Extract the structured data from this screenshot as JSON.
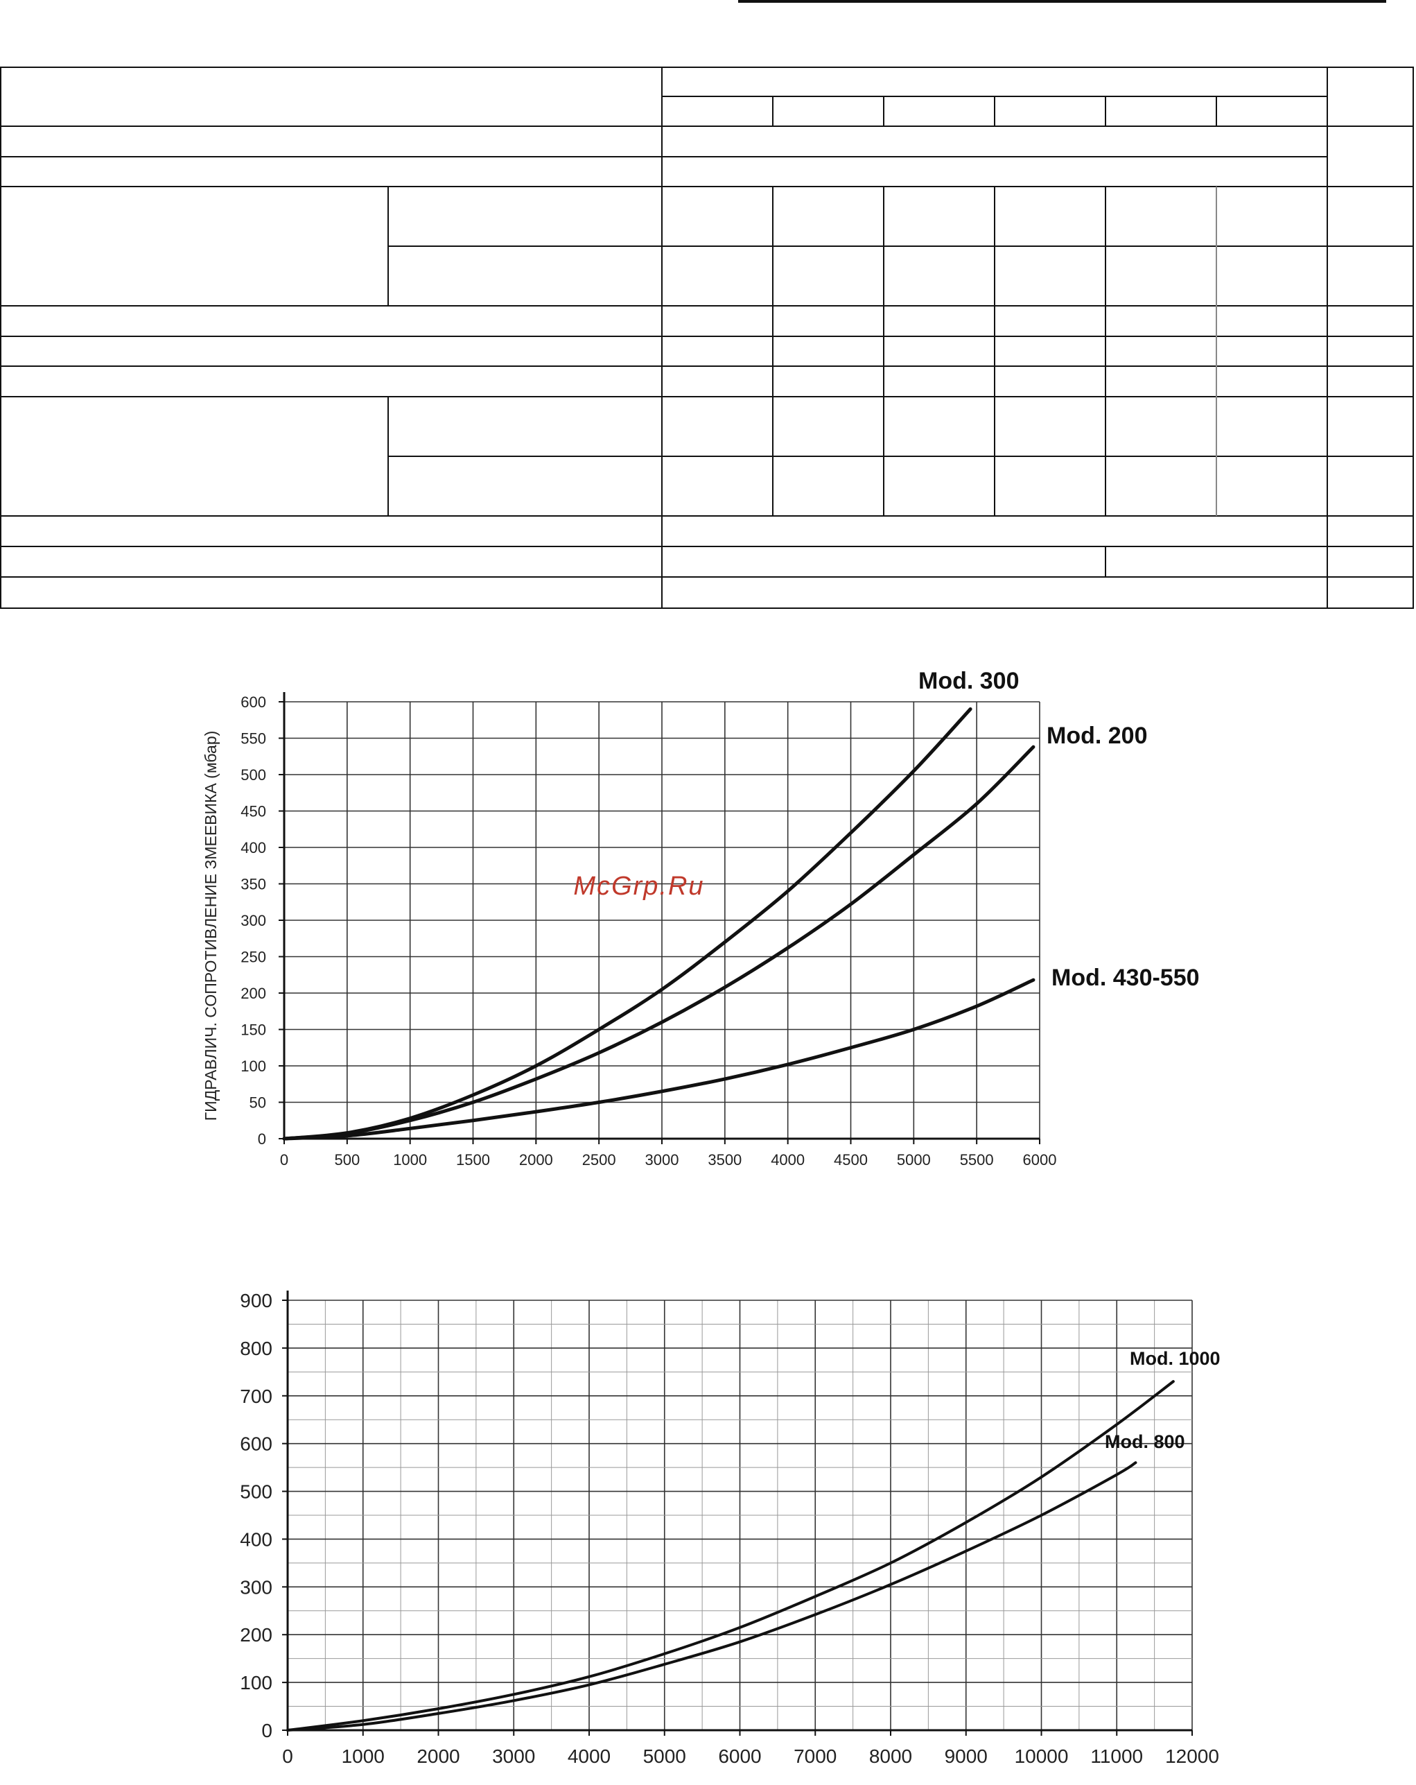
{
  "watermark": "McGrp.Ru",
  "chart_data": [
    {
      "type": "line",
      "title": "",
      "xlabel": "",
      "ylabel": "ГИДРАВЛИЧ. СОПРОТИВЛЕНИЕ ЗМЕЕВИКА (мбар)",
      "xlim": [
        0,
        6000
      ],
      "ylim": [
        0,
        600
      ],
      "x_ticks": [
        "0",
        "500",
        "1000",
        "1500",
        "2000",
        "2500",
        "3000",
        "3500",
        "4000",
        "4500",
        "5000",
        "5500",
        "6000"
      ],
      "y_ticks": [
        "0",
        "50",
        "100",
        "150",
        "200",
        "250",
        "300",
        "350",
        "400",
        "450",
        "500",
        "550",
        "600"
      ],
      "grid": true,
      "series": [
        {
          "name": "Mod. 300",
          "x": [
            0,
            500,
            1000,
            1500,
            2000,
            2500,
            3000,
            3500,
            4000,
            4500,
            5000,
            5450
          ],
          "y": [
            0,
            8,
            28,
            60,
            100,
            150,
            205,
            270,
            340,
            420,
            505,
            590
          ]
        },
        {
          "name": "Mod. 200",
          "x": [
            0,
            500,
            1000,
            1500,
            2000,
            2500,
            3000,
            3500,
            4000,
            4500,
            5000,
            5500,
            5950
          ],
          "y": [
            0,
            7,
            25,
            50,
            82,
            118,
            160,
            208,
            262,
            322,
            390,
            460,
            538
          ]
        },
        {
          "name": "Mod. 430-550",
          "x": [
            0,
            500,
            1000,
            1500,
            2000,
            2500,
            3000,
            3500,
            4000,
            4500,
            5000,
            5500,
            5950
          ],
          "y": [
            0,
            4,
            14,
            25,
            37,
            50,
            65,
            82,
            102,
            125,
            150,
            182,
            218
          ]
        }
      ]
    },
    {
      "type": "line",
      "title": "",
      "xlabel": "",
      "ylabel": "",
      "xlim": [
        0,
        12000
      ],
      "ylim": [
        0,
        900
      ],
      "x_ticks": [
        "0",
        "1000",
        "2000",
        "3000",
        "4000",
        "5000",
        "6000",
        "7000",
        "8000",
        "9000",
        "10000",
        "11000",
        "12000"
      ],
      "y_ticks": [
        "0",
        "100",
        "200",
        "300",
        "400",
        "500",
        "600",
        "700",
        "800",
        "900"
      ],
      "grid": true,
      "series": [
        {
          "name": "Mod. 1000",
          "x": [
            0,
            1000,
            2000,
            3000,
            4000,
            5000,
            6000,
            7000,
            8000,
            9000,
            10000,
            11000,
            11750
          ],
          "y": [
            0,
            20,
            45,
            75,
            112,
            160,
            215,
            280,
            350,
            435,
            530,
            640,
            730
          ]
        },
        {
          "name": "Mod. 800",
          "x": [
            0,
            1000,
            2000,
            3000,
            4000,
            5000,
            6000,
            7000,
            8000,
            9000,
            10000,
            11000,
            11250
          ],
          "y": [
            0,
            12,
            35,
            62,
            95,
            138,
            185,
            242,
            305,
            375,
            450,
            535,
            560
          ]
        }
      ]
    }
  ]
}
